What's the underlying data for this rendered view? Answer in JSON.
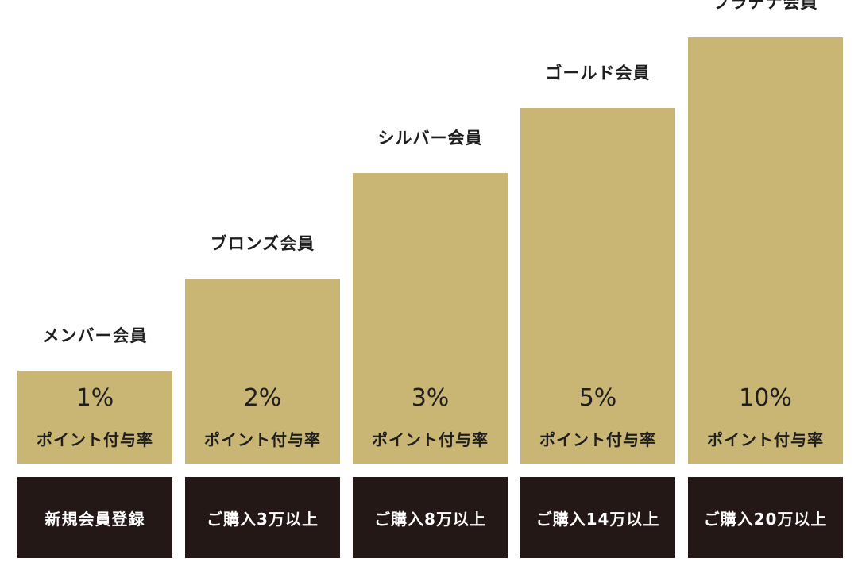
{
  "chart_data": {
    "type": "bar",
    "categories": [
      "メンバー会員",
      "ブロンズ会員",
      "シルバー会員",
      "ゴールド会員",
      "プラチナ会員"
    ],
    "values": [
      1,
      2,
      3,
      5,
      10
    ],
    "value_labels": [
      "1%",
      "2%",
      "3%",
      "5%",
      "10%"
    ],
    "value_caption": "ポイント付与率",
    "conditions": [
      "新規会員登録",
      "ご購入3万以上",
      "ご購入8万以上",
      "ご購入14万以上",
      "ご購入20万以上"
    ],
    "bar_color": "#c9b675",
    "condition_box_color": "#231816"
  }
}
